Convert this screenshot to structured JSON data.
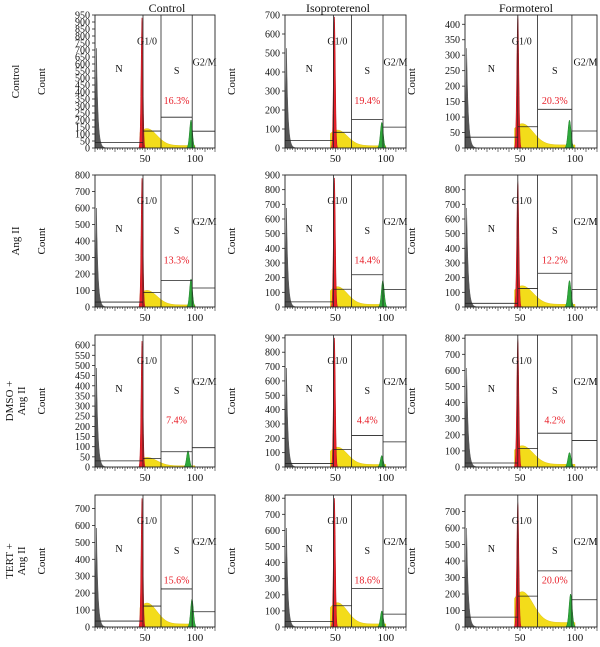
{
  "columns": [
    "Control",
    "Isoproterenol",
    "Formoterol"
  ],
  "row_label_lines": [
    [
      "Control"
    ],
    [
      "Ang II"
    ],
    [
      "DMSO +",
      "Ang II"
    ],
    [
      "TERT +",
      "Ang II"
    ]
  ],
  "ylabel": "Count",
  "region_labels": {
    "n": "N",
    "g1": "G1/0",
    "s": "S",
    "g2": "G2/M"
  },
  "colors": {
    "g1_peak": "#e8202a",
    "s_phase": "#f3dc1a",
    "g2_peak": "#2ea83a",
    "debris": "#555555",
    "frame": "#222222",
    "percent_text": "#e8202a"
  },
  "chart_data": [
    {
      "type": "area",
      "row": 0,
      "col": 0,
      "title": "Control",
      "row_label": "Control",
      "ylabel": "Count",
      "ylim": [
        0,
        950
      ],
      "yticks": [
        0,
        50,
        100,
        150,
        200,
        250,
        300,
        350,
        400,
        450,
        500,
        550,
        600,
        650,
        700,
        750,
        800,
        850,
        900,
        950
      ],
      "xlim": [
        0,
        120
      ],
      "xticks": [
        50,
        100
      ],
      "g1_peak": {
        "x": 47,
        "height": 930
      },
      "g2_peak": {
        "x": 96,
        "height": 200
      },
      "s_phase_percent": "16.3%",
      "gates": {
        "n": 0,
        "g1": 0.4,
        "s": 0.55,
        "g2": 0.81
      },
      "s_gate_level": 220,
      "g2_gate_level": 120,
      "n_gate_level": 40
    },
    {
      "type": "area",
      "row": 0,
      "col": 1,
      "title": "Isoproterenol",
      "row_label": "Control",
      "ylabel": "Count",
      "ylim": [
        0,
        700
      ],
      "yticks": [
        0,
        100,
        200,
        300,
        400,
        500,
        600,
        700
      ],
      "xlim": [
        0,
        120
      ],
      "xticks": [
        50,
        100
      ],
      "g1_peak": {
        "x": 49,
        "height": 690
      },
      "g2_peak": {
        "x": 96,
        "height": 135
      },
      "s_phase_percent": "19.4%",
      "gates": {
        "n": 0,
        "g1": 0.4,
        "s": 0.55,
        "g2": 0.81
      },
      "s_gate_level": 150,
      "g2_gate_level": 110,
      "n_gate_level": 40
    },
    {
      "type": "area",
      "row": 0,
      "col": 2,
      "title": "Formoterol",
      "row_label": "Control",
      "ylabel": "Count",
      "ylim": [
        0,
        430
      ],
      "yticks": [
        0,
        50,
        100,
        150,
        200,
        250,
        300,
        350,
        400
      ],
      "xlim": [
        0,
        120
      ],
      "xticks": [
        50,
        100
      ],
      "g1_peak": {
        "x": 48,
        "height": 430
      },
      "g2_peak": {
        "x": 95,
        "height": 90
      },
      "s_phase_percent": "20.3%",
      "gates": {
        "n": 0,
        "g1": 0.4,
        "s": 0.55,
        "g2": 0.81
      },
      "s_gate_level": 125,
      "g2_gate_level": 55,
      "n_gate_level": 35
    },
    {
      "type": "area",
      "row": 1,
      "col": 0,
      "title": "Control",
      "row_label": "Ang II",
      "ylabel": "Count",
      "ylim": [
        0,
        800
      ],
      "yticks": [
        0,
        100,
        200,
        300,
        400,
        500,
        600,
        700,
        800
      ],
      "xlim": [
        0,
        120
      ],
      "xticks": [
        50,
        100
      ],
      "g1_peak": {
        "x": 47,
        "height": 780
      },
      "g2_peak": {
        "x": 96,
        "height": 170
      },
      "s_phase_percent": "13.3%",
      "gates": {
        "n": 0,
        "g1": 0.4,
        "s": 0.55,
        "g2": 0.81
      },
      "s_gate_level": 160,
      "g2_gate_level": 115,
      "n_gate_level": 30
    },
    {
      "type": "area",
      "row": 1,
      "col": 1,
      "title": "Isoproterenol",
      "row_label": "Ang II",
      "ylabel": "Count",
      "ylim": [
        0,
        900
      ],
      "yticks": [
        0,
        100,
        200,
        300,
        400,
        500,
        600,
        700,
        800,
        900
      ],
      "xlim": [
        0,
        120
      ],
      "xticks": [
        50,
        100
      ],
      "g1_peak": {
        "x": 49,
        "height": 880
      },
      "g2_peak": {
        "x": 97,
        "height": 180
      },
      "s_phase_percent": "14.4%",
      "gates": {
        "n": 0,
        "g1": 0.4,
        "s": 0.55,
        "g2": 0.81
      },
      "s_gate_level": 220,
      "g2_gate_level": 120,
      "n_gate_level": 35
    },
    {
      "type": "area",
      "row": 1,
      "col": 2,
      "title": "Formoterol",
      "row_label": "Ang II",
      "ylabel": "Count",
      "ylim": [
        0,
        900
      ],
      "yticks": [
        0,
        100,
        200,
        300,
        400,
        500,
        600,
        700,
        800
      ],
      "xlim": [
        0,
        120
      ],
      "xticks": [
        50,
        100
      ],
      "g1_peak": {
        "x": 48,
        "height": 860
      },
      "g2_peak": {
        "x": 95,
        "height": 180
      },
      "s_phase_percent": "12.2%",
      "gates": {
        "n": 0,
        "g1": 0.4,
        "s": 0.55,
        "g2": 0.81
      },
      "s_gate_level": 230,
      "g2_gate_level": 120,
      "n_gate_level": 25
    },
    {
      "type": "area",
      "row": 2,
      "col": 0,
      "title": "Control",
      "row_label": "DMSO + Ang II",
      "ylabel": "Count",
      "ylim": [
        0,
        650
      ],
      "yticks": [
        0,
        50,
        100,
        150,
        200,
        250,
        300,
        350,
        400,
        450,
        500,
        550,
        600
      ],
      "xlim": [
        0,
        120
      ],
      "xticks": [
        50,
        100
      ],
      "g1_peak": {
        "x": 47,
        "height": 620
      },
      "g2_peak": {
        "x": 93,
        "height": 80
      },
      "s_phase_percent": "7.4%",
      "gates": {
        "n": 0,
        "g1": 0.4,
        "s": 0.55,
        "g2": 0.81
      },
      "s_gate_level": 75,
      "g2_gate_level": 95,
      "n_gate_level": 30
    },
    {
      "type": "area",
      "row": 2,
      "col": 1,
      "title": "Isoproterenol",
      "row_label": "DMSO + Ang II",
      "ylabel": "Count",
      "ylim": [
        0,
        920
      ],
      "yticks": [
        0,
        100,
        200,
        300,
        400,
        500,
        600,
        700,
        800,
        900
      ],
      "xlim": [
        0,
        120
      ],
      "xticks": [
        50,
        100
      ],
      "g1_peak": {
        "x": 49,
        "height": 900
      },
      "g2_peak": {
        "x": 96,
        "height": 80
      },
      "s_phase_percent": "4.4%",
      "gates": {
        "n": 0,
        "g1": 0.4,
        "s": 0.55,
        "g2": 0.81
      },
      "s_gate_level": 220,
      "g2_gate_level": 175,
      "n_gate_level": 25
    },
    {
      "type": "area",
      "row": 2,
      "col": 2,
      "title": "Formoterol",
      "row_label": "DMSO + Ang II",
      "ylabel": "Count",
      "ylim": [
        0,
        820
      ],
      "yticks": [
        0,
        100,
        200,
        300,
        400,
        500,
        600,
        700,
        800
      ],
      "xlim": [
        0,
        120
      ],
      "xticks": [
        50,
        100
      ],
      "g1_peak": {
        "x": 48,
        "height": 800
      },
      "g2_peak": {
        "x": 95,
        "height": 90
      },
      "s_phase_percent": "4.2%",
      "gates": {
        "n": 0,
        "g1": 0.4,
        "s": 0.55,
        "g2": 0.81
      },
      "s_gate_level": 210,
      "g2_gate_level": 165,
      "n_gate_level": 25
    },
    {
      "type": "area",
      "row": 3,
      "col": 0,
      "title": "Control",
      "row_label": "TERT + Ang II",
      "ylabel": "Count",
      "ylim": [
        0,
        780
      ],
      "yticks": [
        0,
        100,
        200,
        300,
        400,
        500,
        600,
        700
      ],
      "xlim": [
        0,
        120
      ],
      "xticks": [
        50,
        100
      ],
      "g1_peak": {
        "x": 47,
        "height": 760
      },
      "g2_peak": {
        "x": 97,
        "height": 165
      },
      "s_phase_percent": "15.6%",
      "gates": {
        "n": 0,
        "g1": 0.4,
        "s": 0.55,
        "g2": 0.81
      },
      "s_gate_level": 225,
      "g2_gate_level": 90,
      "n_gate_level": 35
    },
    {
      "type": "area",
      "row": 3,
      "col": 1,
      "title": "Isoproterenol",
      "row_label": "TERT + Ang II",
      "ylabel": "Count",
      "ylim": [
        0,
        820
      ],
      "yticks": [
        0,
        100,
        200,
        300,
        400,
        500,
        600,
        700,
        800
      ],
      "xlim": [
        0,
        120
      ],
      "xticks": [
        50,
        100
      ],
      "g1_peak": {
        "x": 49,
        "height": 800
      },
      "g2_peak": {
        "x": 96,
        "height": 100
      },
      "s_phase_percent": "18.6%",
      "gates": {
        "n": 0,
        "g1": 0.4,
        "s": 0.55,
        "g2": 0.81
      },
      "s_gate_level": 240,
      "g2_gate_level": 80,
      "n_gate_level": 35
    },
    {
      "type": "area",
      "row": 3,
      "col": 2,
      "title": "Formoterol",
      "row_label": "TERT + Ang II",
      "ylabel": "Count",
      "ylim": [
        0,
        800
      ],
      "yticks": [
        0,
        100,
        200,
        300,
        400,
        500,
        600,
        700
      ],
      "xlim": [
        0,
        120
      ],
      "xticks": [
        50,
        100
      ],
      "g1_peak": {
        "x": 48,
        "height": 760
      },
      "g2_peak": {
        "x": 96,
        "height": 200
      },
      "s_phase_percent": "20.0%",
      "gates": {
        "n": 0,
        "g1": 0.4,
        "s": 0.55,
        "g2": 0.81
      },
      "s_gate_level": 340,
      "g2_gate_level": 165,
      "n_gate_level": 60
    }
  ]
}
